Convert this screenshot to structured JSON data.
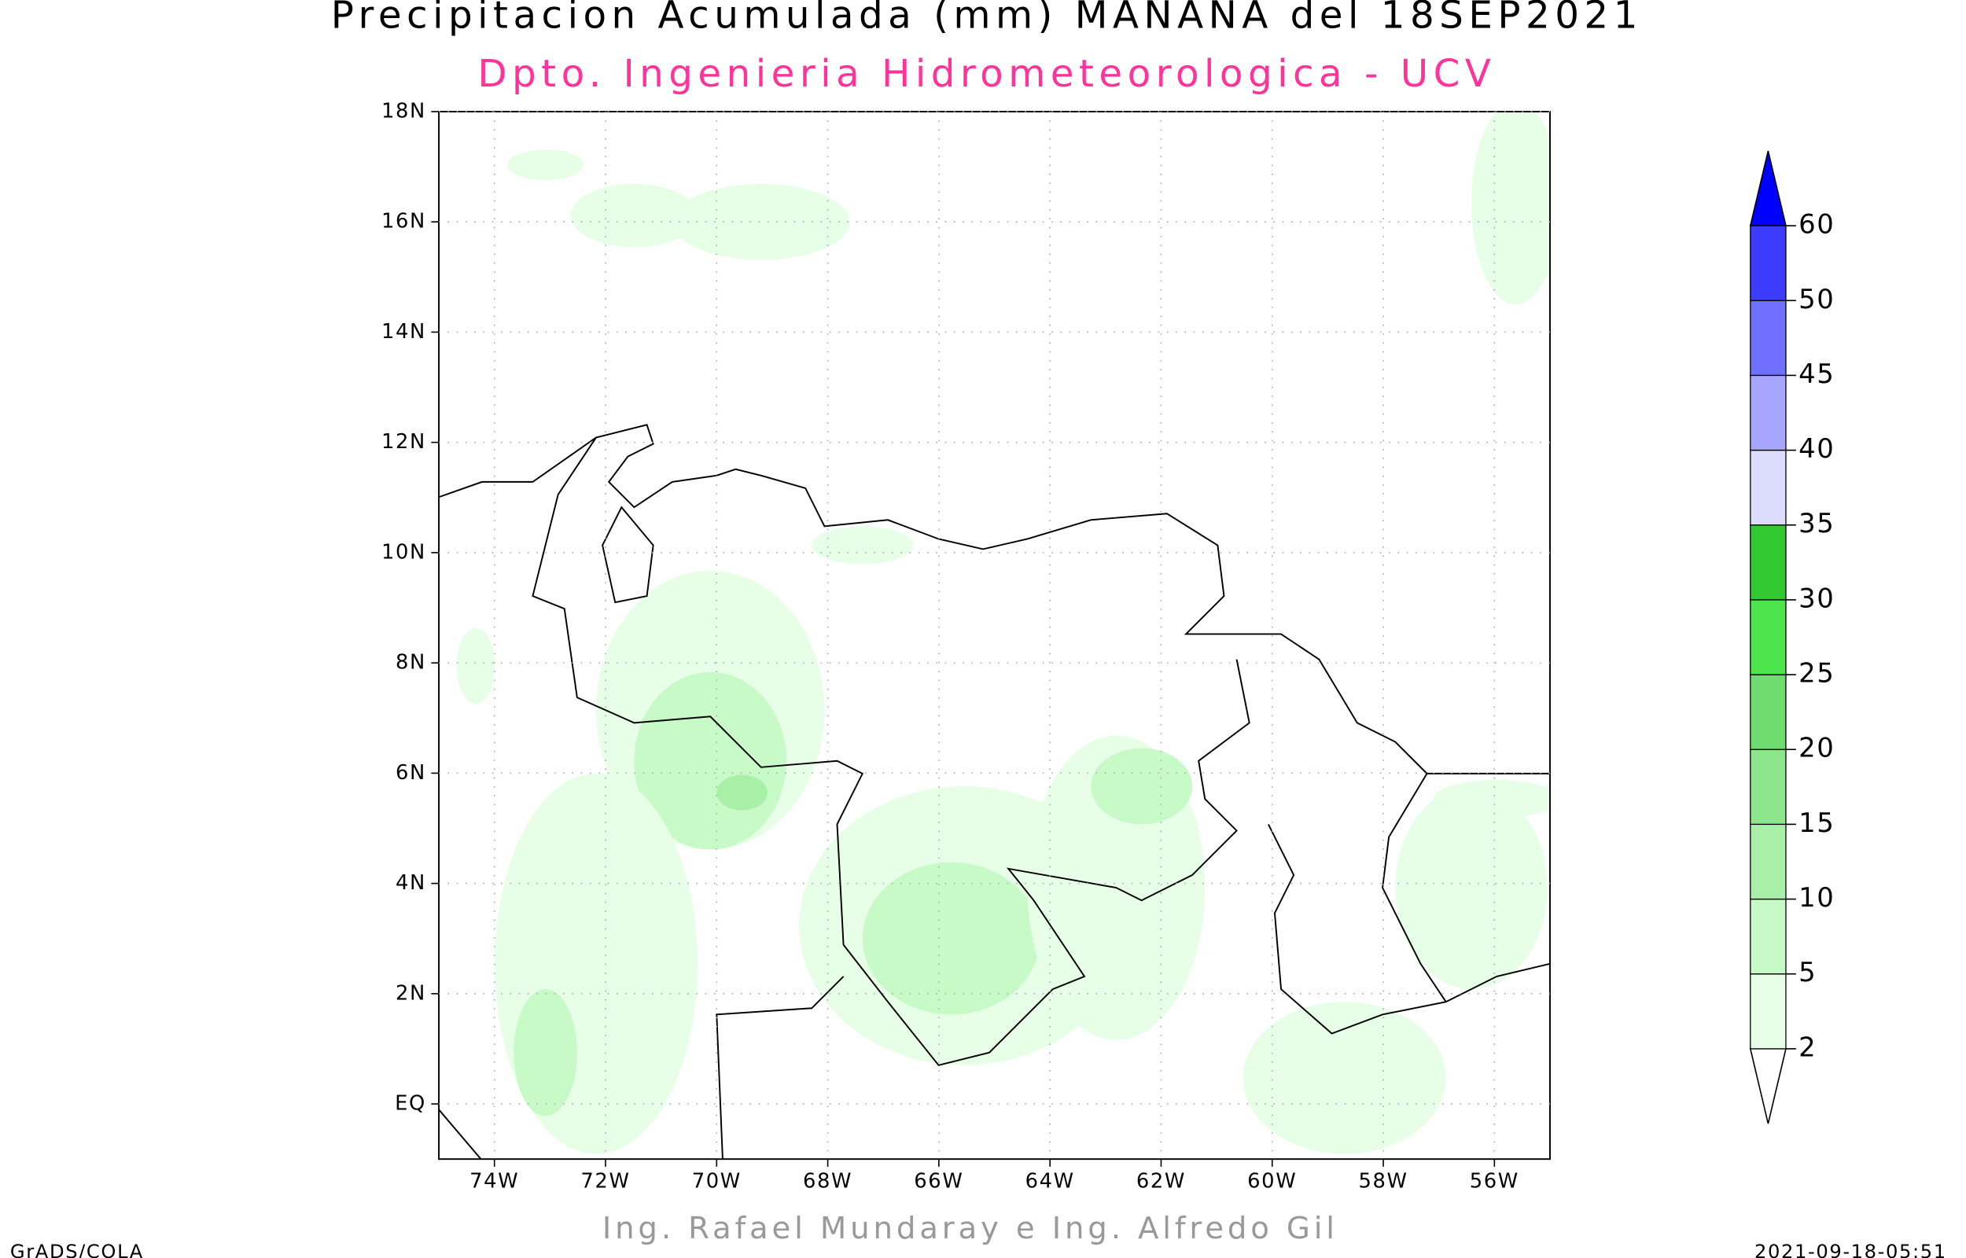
{
  "title": "Precipitacion Acumulada (mm) MANANA del 18SEP2021",
  "subtitle": "Dpto. Ingenieria Hidrometeorologica - UCV",
  "credit": "Ing. Rafael Mundaray e Ing. Alfredo Gil",
  "footer_left": "GrADS/COLA",
  "timestamp": "2021-09-18-05:51",
  "map": {
    "xlim": [
      -75,
      -55
    ],
    "ylim": [
      -1,
      18
    ],
    "xticks": [
      {
        "value": -74,
        "label": "74W"
      },
      {
        "value": -72,
        "label": "72W"
      },
      {
        "value": -70,
        "label": "70W"
      },
      {
        "value": -68,
        "label": "68W"
      },
      {
        "value": -66,
        "label": "66W"
      },
      {
        "value": -64,
        "label": "64W"
      },
      {
        "value": -62,
        "label": "62W"
      },
      {
        "value": -60,
        "label": "60W"
      },
      {
        "value": -58,
        "label": "58W"
      },
      {
        "value": -56,
        "label": "56W"
      }
    ],
    "yticks": [
      {
        "value": 0,
        "label": "EQ"
      },
      {
        "value": 2,
        "label": "2N"
      },
      {
        "value": 4,
        "label": "4N"
      },
      {
        "value": 6,
        "label": "6N"
      },
      {
        "value": 8,
        "label": "8N"
      },
      {
        "value": 10,
        "label": "10N"
      },
      {
        "value": 12,
        "label": "12N"
      },
      {
        "value": 14,
        "label": "14N"
      },
      {
        "value": 16,
        "label": "16N"
      },
      {
        "value": 18,
        "label": "18N"
      }
    ],
    "grid": true
  },
  "colorbar": {
    "levels": [
      2,
      5,
      10,
      15,
      20,
      25,
      30,
      35,
      40,
      45,
      50,
      60
    ],
    "colors": [
      "#ffffff",
      "#e6ffe6",
      "#c8fac8",
      "#a8f0a8",
      "#8ce68c",
      "#6edc6e",
      "#4ce64c",
      "#32c832",
      "#dcdcff",
      "#a6a6ff",
      "#7070ff",
      "#3c3cff",
      "#0000ff"
    ]
  }
}
